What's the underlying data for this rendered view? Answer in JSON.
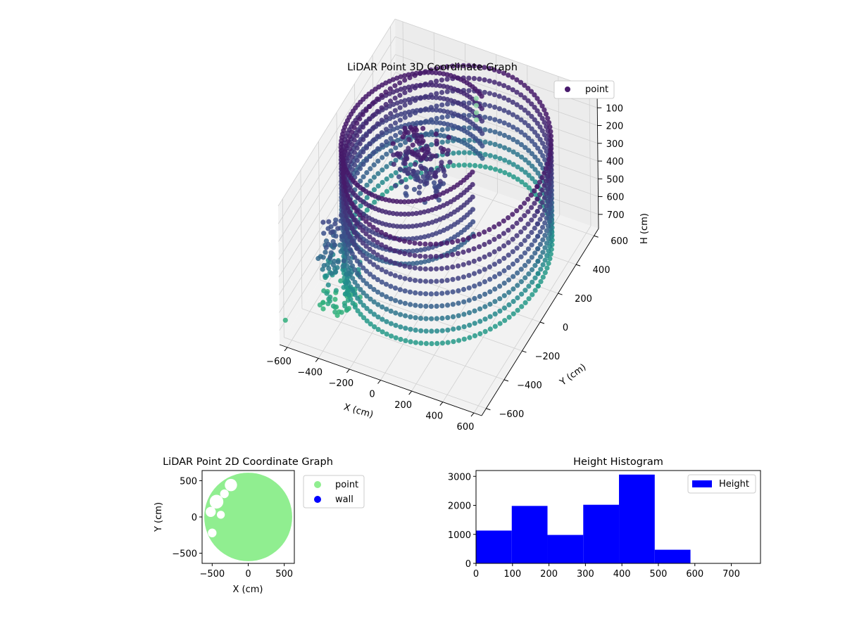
{
  "chart_data": [
    {
      "type": "scatter",
      "subtype": "scatter-3d",
      "title": "LiDAR Point 3D Coordinate Graph",
      "xlabel": "X (cm)",
      "ylabel": "Y (cm)",
      "zlabel": "H (cm)",
      "xlim": [
        -650,
        650
      ],
      "ylim": [
        -650,
        650
      ],
      "zlim": [
        0,
        780
      ],
      "z_inverted": true,
      "x_ticks": [
        "−600",
        "−400",
        "−200",
        "0",
        "200",
        "400",
        "600"
      ],
      "y_ticks": [
        "−600",
        "−400",
        "−200",
        "0",
        "200",
        "400",
        "600"
      ],
      "z_ticks": [
        "0",
        "100",
        "200",
        "300",
        "400",
        "500",
        "600",
        "700"
      ],
      "grid": true,
      "legend": {
        "placement": "top-right",
        "entries": [
          {
            "label": "point",
            "color": "#481a6c"
          }
        ]
      },
      "colormap": "viridis (depth-shaded)",
      "rings": [
        {
          "radius": 580,
          "center": [
            60,
            0
          ],
          "theta_start_deg": 0,
          "theta_end_deg": 360,
          "h_values": [
            20,
            90,
            160,
            230,
            300,
            370,
            440,
            510,
            580
          ]
        },
        {
          "radius": 420,
          "center": [
            -160,
            40
          ],
          "theta_start_deg": 60,
          "theta_end_deg": 350,
          "h_values": [
            20,
            90,
            160,
            230,
            300,
            370
          ]
        }
      ],
      "clusters": [
        {
          "center": [
            -120,
            30
          ],
          "spread": [
            150,
            80
          ],
          "h_range": [
            0,
            300
          ]
        },
        {
          "center": [
            -420,
            -380
          ],
          "spread": [
            100,
            90
          ],
          "h_range": [
            250,
            720
          ]
        }
      ],
      "outliers": [
        {
          "x": -640,
          "y": -600,
          "h": 680
        }
      ],
      "vertical_column": {
        "x": 40,
        "y": 360,
        "h_values": [
          0,
          40,
          80,
          120
        ]
      }
    },
    {
      "type": "scatter",
      "title": "LiDAR Point 2D Coordinate Graph",
      "xlabel": "X (cm)",
      "ylabel": "Y (cm)",
      "xlim": [
        -640,
        640
      ],
      "ylim": [
        -640,
        640
      ],
      "x_ticks": [
        -500,
        0,
        500
      ],
      "y_ticks": [
        -500,
        0,
        500
      ],
      "legend": {
        "placement": "outside-right",
        "entries": [
          {
            "label": "point",
            "color": "#90ee90"
          },
          {
            "label": "wall",
            "color": "#0000ff"
          }
        ]
      },
      "series": [
        {
          "name": "point",
          "color": "#90ee90",
          "region": {
            "center": [
              0,
              0
            ],
            "radius": 610
          }
        },
        {
          "name": "wall",
          "color": "#0000ff",
          "points": []
        }
      ],
      "gaps": [
        {
          "center": [
            -440,
            210
          ],
          "radius": 95
        },
        {
          "center": [
            -330,
            320
          ],
          "radius": 60
        },
        {
          "center": [
            -240,
            440
          ],
          "radius": 85
        },
        {
          "center": [
            -520,
            70
          ],
          "radius": 70
        },
        {
          "center": [
            -500,
            -220
          ],
          "radius": 60
        },
        {
          "center": [
            -380,
            30
          ],
          "radius": 55
        }
      ]
    },
    {
      "type": "bar",
      "subtype": "histogram",
      "title": "Height Histogram",
      "xlim": [
        0,
        780
      ],
      "ylim": [
        0,
        3200
      ],
      "x_ticks": [
        0,
        100,
        200,
        300,
        400,
        500,
        600,
        700
      ],
      "y_ticks": [
        0,
        1000,
        2000,
        3000
      ],
      "bin_edges": [
        0,
        98,
        196,
        294,
        392,
        490,
        588,
        686,
        784
      ],
      "values": [
        1130,
        1980,
        980,
        2020,
        3060,
        470,
        0,
        0
      ],
      "color": "#0000ff",
      "legend": {
        "placement": "top-right",
        "entries": [
          {
            "label": "Height",
            "color": "#0000ff"
          }
        ]
      }
    }
  ]
}
